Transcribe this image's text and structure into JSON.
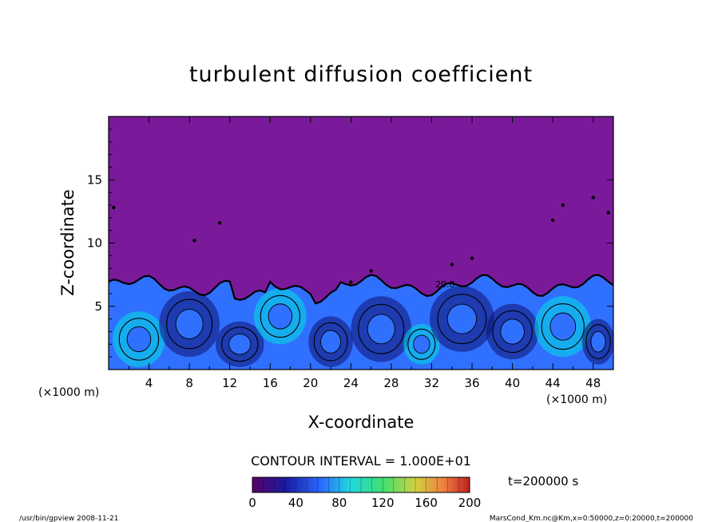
{
  "chart_data": {
    "type": "heatmap",
    "title": "turbulent diffusion coefficient",
    "xlabel": "X-coordinate",
    "ylabel": "Z-coordinate",
    "x_unit": "(×1000 m)",
    "y_unit": "(×1000 m)",
    "xlim": [
      0,
      50
    ],
    "ylim": [
      0,
      20
    ],
    "x_ticks": [
      4,
      8,
      12,
      16,
      20,
      24,
      28,
      32,
      36,
      40,
      44,
      48
    ],
    "y_ticks": [
      5,
      10,
      15
    ],
    "contour_interval": "CONTOUR INTERVAL = 1.000E+01",
    "contour_inline_label": "20.0",
    "time_label": "t=200000 s",
    "colorbar": {
      "min": 0,
      "max": 200,
      "ticks": [
        0,
        40,
        80,
        120,
        160,
        200
      ]
    },
    "background_value": 0,
    "mixed_layer_top_km": 7,
    "colors": {
      "background": "#7a1a9a",
      "low": "#101070",
      "mid": "#3070ff",
      "high": "#00e0e0"
    }
  },
  "footer": {
    "left": "/usr/bin/gpview   2008-11-21",
    "right": "MarsCond_Km.nc@Km,x=0:50000,z=0:20000,t=200000"
  }
}
